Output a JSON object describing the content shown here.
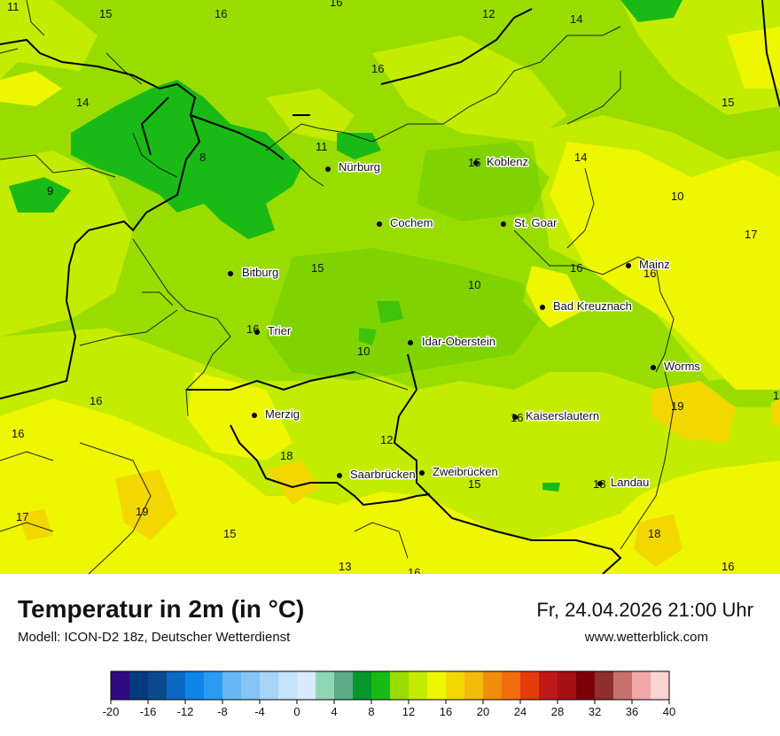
{
  "title": "Temperatur in 2m (in °C)",
  "model_info": "Modell: ICON-D2 18z, Deutscher Wetterdienst",
  "valid_time": "Fr, 24.04.2026 21:00 Uhr",
  "website": "www.wetterblick.com",
  "cities": [
    {
      "name": "Nürburg"
    },
    {
      "name": "Koblenz"
    },
    {
      "name": "Cochem"
    },
    {
      "name": "St. Goar"
    },
    {
      "name": "Mainz"
    },
    {
      "name": "Bitburg"
    },
    {
      "name": "Bad Kreuznach"
    },
    {
      "name": "Trier"
    },
    {
      "name": "Idar-Oberstein"
    },
    {
      "name": "Worms"
    },
    {
      "name": "Merzig"
    },
    {
      "name": "Kaiserslautern"
    },
    {
      "name": "Saarbrücken"
    },
    {
      "name": "Zweibrücken"
    },
    {
      "name": "Landau"
    }
  ],
  "temperature_labels": [
    "11",
    "15",
    "16",
    "16",
    "12",
    "14",
    "16",
    "14",
    "15",
    "11",
    "8",
    "15",
    "14",
    "9",
    "10",
    "17",
    "15",
    "16",
    "16",
    "10",
    "16",
    "10",
    "16",
    "16",
    "19",
    "1",
    "12",
    "18",
    "16",
    "15",
    "18",
    "17",
    "19",
    "15",
    "18",
    "13",
    "16",
    "16"
  ],
  "legend": {
    "colors": [
      "#2e0b7e",
      "#053a7c",
      "#0b4a8c",
      "#0b68c4",
      "#0e85e8",
      "#2b9af2",
      "#66b8f5",
      "#85c5f6",
      "#a6d4f7",
      "#c5e2f9",
      "#dbeafb",
      "#8fd6b4",
      "#5aab86",
      "#07962c",
      "#1aba16",
      "#99dd00",
      "#c4ec00",
      "#eef700",
      "#f2d800",
      "#f2ba0b",
      "#f08c0e",
      "#f06e10",
      "#e43a0c",
      "#c01818",
      "#a80f16",
      "#7c0006",
      "#8e2e2e",
      "#c67070",
      "#f0a8a8",
      "#fbd4d4"
    ],
    "tick_labels": [
      "-20",
      "-16",
      "-12",
      "-8",
      "-4",
      "0",
      "4",
      "8",
      "12",
      "16",
      "20",
      "24",
      "28",
      "32",
      "36",
      "40"
    ]
  }
}
